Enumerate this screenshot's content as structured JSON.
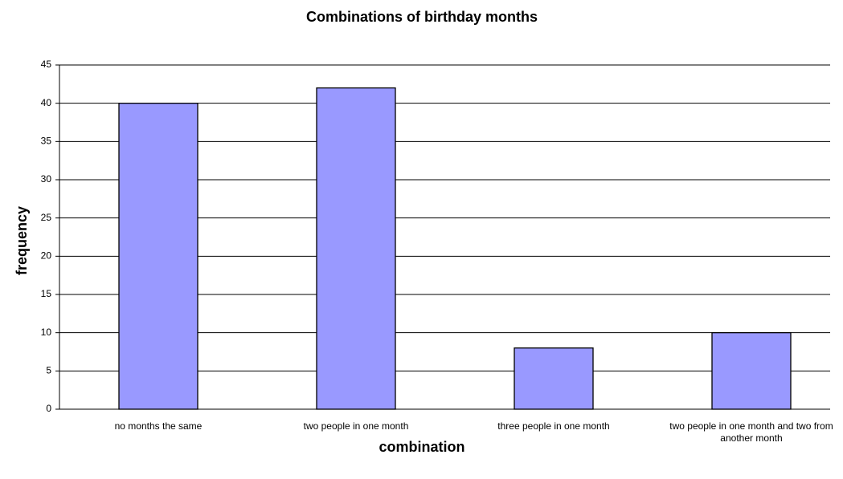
{
  "chart_data": {
    "type": "bar",
    "title": "Combinations of birthday months",
    "xlabel": "combination",
    "ylabel": "frequency",
    "categories": [
      "no months the same",
      "two people in one month",
      "three people in one month",
      "two people in one month and two from another month"
    ],
    "values": [
      40,
      42,
      8,
      10
    ],
    "color": "#9999ff",
    "ylim": [
      0,
      45
    ],
    "yticks": [
      0,
      5,
      10,
      15,
      20,
      25,
      30,
      35,
      40,
      45
    ],
    "grid": true
  }
}
